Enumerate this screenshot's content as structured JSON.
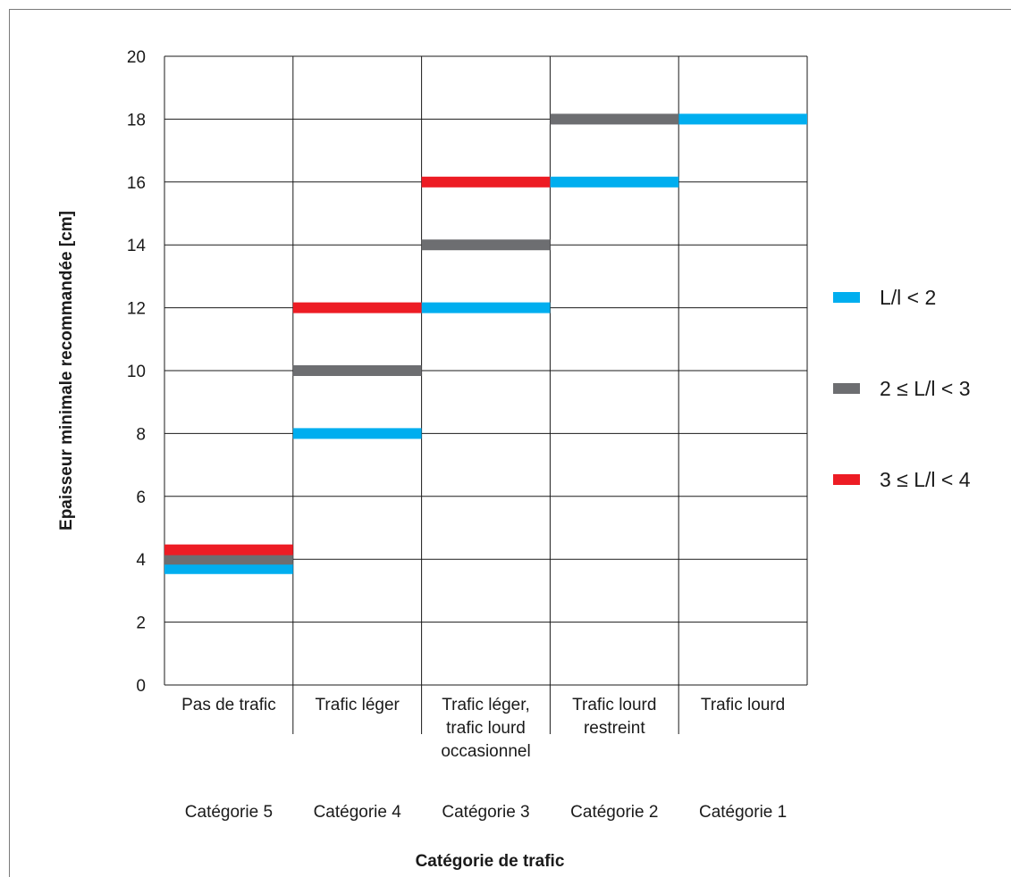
{
  "chart_data": {
    "type": "bar",
    "title": "",
    "ylabel": "Epaisseur minimale recommandée [cm]",
    "xlabel": "Catégorie de trafic",
    "ylim": [
      0,
      20
    ],
    "yticks": [
      "0",
      "2",
      "4",
      "6",
      "8",
      "10",
      "12",
      "14",
      "16",
      "18",
      "20"
    ],
    "grid": true,
    "legend_position": "right",
    "categories": [
      {
        "lines": [
          "Pas de trafic"
        ],
        "group": "Catégorie 5"
      },
      {
        "lines": [
          "Trafic léger"
        ],
        "group": "Catégorie 4"
      },
      {
        "lines": [
          "Trafic léger,",
          "trafic lourd",
          "occasionnel"
        ],
        "group": "Catégorie 3"
      },
      {
        "lines": [
          "Trafic lourd",
          "restreint"
        ],
        "group": "Catégorie 2"
      },
      {
        "lines": [
          "Trafic lourd"
        ],
        "group": "Catégorie 1"
      }
    ],
    "series": [
      {
        "name": "L/l < 2",
        "color": "#00aeef",
        "values": [
          3.7,
          8,
          12,
          16,
          18
        ]
      },
      {
        "name": "2 ≤ L/l < 3",
        "color": "#6d6e71",
        "values": [
          4,
          10,
          14,
          18,
          null
        ]
      },
      {
        "name": "3 ≤ L/l < 4",
        "color": "#ed1c24",
        "values": [
          4.3,
          12,
          16,
          null,
          null
        ]
      }
    ]
  }
}
